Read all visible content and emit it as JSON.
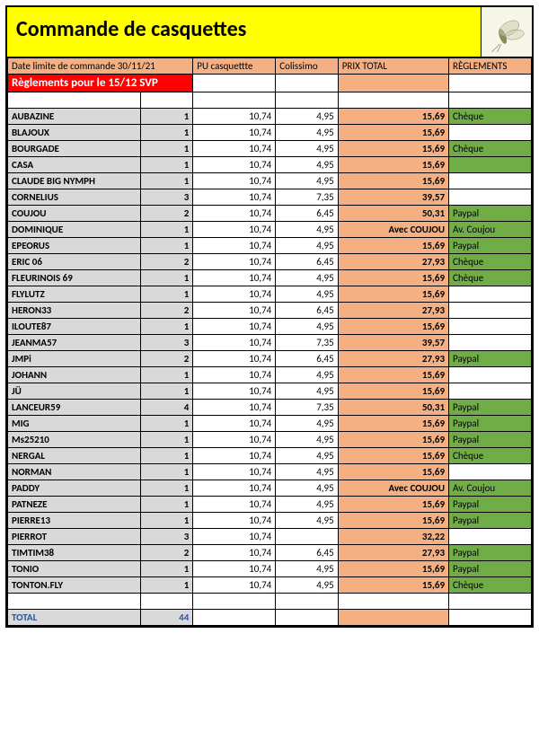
{
  "title": "Commande de casquettes",
  "headers": {
    "deadline": "Date limite de commande 30/11/21",
    "pu": "PU casquettte",
    "colissimo": "Colissimo",
    "prix_total": "PRIX TOTAL",
    "reglements": "RÈGLEMENTS"
  },
  "notice": "Règlements pour le 15/12 SVP",
  "rows": [
    {
      "name": "AUBAZINE",
      "qty": "1",
      "pu": "10,74",
      "col": "4,95",
      "tot": "15,69",
      "pay": "Chèque",
      "pay_bg": "g"
    },
    {
      "name": "BLAJOUX",
      "qty": "1",
      "pu": "10,74",
      "col": "4,95",
      "tot": "15,69",
      "pay": "",
      "pay_bg": "w"
    },
    {
      "name": "BOURGADE",
      "qty": "1",
      "pu": "10,74",
      "col": "4,95",
      "tot": "15,69",
      "pay": "Chèque",
      "pay_bg": "g"
    },
    {
      "name": "CASA",
      "qty": "1",
      "pu": "10,74",
      "col": "4,95",
      "tot": "15,69",
      "pay": "",
      "pay_bg": "g"
    },
    {
      "name": "CLAUDE BIG NYMPH",
      "qty": "1",
      "pu": "10,74",
      "col": "4,95",
      "tot": "15,69",
      "pay": "",
      "pay_bg": "w"
    },
    {
      "name": "CORNELIUS",
      "qty": "3",
      "pu": "10,74",
      "col": "7,35",
      "tot": "39,57",
      "pay": "",
      "pay_bg": "w"
    },
    {
      "name": "COUJOU",
      "qty": "2",
      "pu": "10,74",
      "col": "6,45",
      "tot": "50,31",
      "pay": "Paypal",
      "pay_bg": "g"
    },
    {
      "name": "DOMINIQUE",
      "qty": "1",
      "pu": "10,74",
      "col": "4,95",
      "tot": "Avec COUJOU",
      "pay": "Av. Coujou",
      "pay_bg": "g"
    },
    {
      "name": "EPEORUS",
      "qty": "1",
      "pu": "10,74",
      "col": "4,95",
      "tot": "15,69",
      "pay": "Paypal",
      "pay_bg": "g"
    },
    {
      "name": "ERIC 06",
      "qty": "2",
      "pu": "10,74",
      "col": "6,45",
      "tot": "27,93",
      "pay": "Chèque",
      "pay_bg": "g"
    },
    {
      "name": "FLEURINOIS 69",
      "qty": "1",
      "pu": "10,74",
      "col": "4,95",
      "tot": "15,69",
      "pay": "Chèque",
      "pay_bg": "g"
    },
    {
      "name": "FLYLUTZ",
      "qty": "1",
      "pu": "10,74",
      "col": "4,95",
      "tot": "15,69",
      "pay": "",
      "pay_bg": "w"
    },
    {
      "name": "HERON33",
      "qty": "2",
      "pu": "10,74",
      "col": "6,45",
      "tot": "27,93",
      "pay": "",
      "pay_bg": "w"
    },
    {
      "name": "ILOUTE87",
      "qty": "1",
      "pu": "10,74",
      "col": "4,95",
      "tot": "15,69",
      "pay": "",
      "pay_bg": "w"
    },
    {
      "name": "JEANMA57",
      "qty": "3",
      "pu": "10,74",
      "col": "7,35",
      "tot": "39,57",
      "pay": "",
      "pay_bg": "w"
    },
    {
      "name": "JMPi",
      "qty": "2",
      "pu": "10,74",
      "col": "6,45",
      "tot": "27,93",
      "pay": "Paypal",
      "pay_bg": "g"
    },
    {
      "name": "JOHANN",
      "qty": "1",
      "pu": "10,74",
      "col": "4,95",
      "tot": "15,69",
      "pay": "",
      "pay_bg": "w"
    },
    {
      "name": "JÜ",
      "qty": "1",
      "pu": "10,74",
      "col": "4,95",
      "tot": "15,69",
      "pay": "",
      "pay_bg": "w"
    },
    {
      "name": "LANCEUR59",
      "qty": "4",
      "pu": "10,74",
      "col": "7,35",
      "tot": "50,31",
      "pay": "Paypal",
      "pay_bg": "g"
    },
    {
      "name": "MIG",
      "qty": "1",
      "pu": "10,74",
      "col": "4,95",
      "tot": "15,69",
      "pay": "Paypal",
      "pay_bg": "g"
    },
    {
      "name": "Ms25210",
      "qty": "1",
      "pu": "10,74",
      "col": "4,95",
      "tot": "15,69",
      "pay": "Paypal",
      "pay_bg": "g"
    },
    {
      "name": "NERGAL",
      "qty": "1",
      "pu": "10,74",
      "col": "4,95",
      "tot": "15,69",
      "pay": "Chèque",
      "pay_bg": "g"
    },
    {
      "name": "NORMAN",
      "qty": "1",
      "pu": "10,74",
      "col": "4,95",
      "tot": "15,69",
      "pay": "",
      "pay_bg": "w"
    },
    {
      "name": "PADDY",
      "qty": "1",
      "pu": "10,74",
      "col": "4,95",
      "tot": "Avec COUJOU",
      "pay": "Av. Coujou",
      "pay_bg": "g"
    },
    {
      "name": "PATNEZE",
      "qty": "1",
      "pu": "10,74",
      "col": "4,95",
      "tot": "15,69",
      "pay": "Paypal",
      "pay_bg": "g"
    },
    {
      "name": "PIERRE13",
      "qty": "1",
      "pu": "10,74",
      "col": "4,95",
      "tot": "15,69",
      "pay": "Paypal",
      "pay_bg": "g"
    },
    {
      "name": "PIERROT",
      "qty": "3",
      "pu": "10,74",
      "col": "",
      "tot": "32,22",
      "pay": "",
      "pay_bg": "w"
    },
    {
      "name": "TIMTIM38",
      "qty": "2",
      "pu": "10,74",
      "col": "6,45",
      "tot": "27,93",
      "pay": "Paypal",
      "pay_bg": "g"
    },
    {
      "name": "TONIO",
      "qty": "1",
      "pu": "10,74",
      "col": "4,95",
      "tot": "15,69",
      "pay": "Paypal",
      "pay_bg": "g"
    },
    {
      "name": "TONTON.FLY",
      "qty": "1",
      "pu": "10,74",
      "col": "4,95",
      "tot": "15,69",
      "pay": "Chèque",
      "pay_bg": "g"
    }
  ],
  "total_row": {
    "label": "TOTAL",
    "qty": "44"
  },
  "colors": {
    "title_bg": "#ffff00",
    "header_bg": "#f4b083",
    "notice_bg": "#ff0000",
    "name_bg": "#d9d9d9",
    "total_bg": "#f4b083",
    "pay_green": "#70ad47",
    "total_text": "#2f5597"
  }
}
